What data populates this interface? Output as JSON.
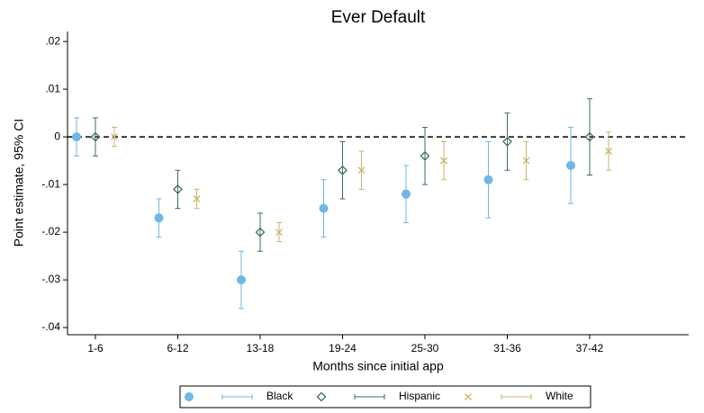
{
  "chart_data": {
    "type": "errorbar",
    "title": "Ever Default",
    "x_label": "Months since initial app",
    "y_label": "Point estimate, 95% CI",
    "categories": [
      "1-6",
      "6-12",
      "13-18",
      "19-24",
      "25-30",
      "31-36",
      "37-42"
    ],
    "series": [
      {
        "name": "Black",
        "color": "#6fb7e6",
        "marker": "circle",
        "values": [
          0,
          -0.017,
          -0.03,
          -0.015,
          -0.012,
          -0.009,
          -0.006
        ],
        "lower": [
          -0.004,
          -0.021,
          -0.036,
          -0.021,
          -0.018,
          -0.017,
          -0.014
        ],
        "upper": [
          0.004,
          -0.013,
          -0.024,
          -0.009,
          -0.006,
          -0.001,
          0.002
        ]
      },
      {
        "name": "Hispanic",
        "color": "#3f6e62",
        "marker": "diamond",
        "values": [
          0,
          -0.011,
          -0.02,
          -0.007,
          -0.004,
          -0.001,
          0
        ],
        "lower": [
          -0.004,
          -0.015,
          -0.024,
          -0.013,
          -0.01,
          -0.007,
          -0.008
        ],
        "upper": [
          0.004,
          -0.007,
          -0.016,
          -0.001,
          0.002,
          0.005,
          0.008
        ]
      },
      {
        "name": "White",
        "color": "#c9b56b",
        "marker": "x",
        "values": [
          0,
          -0.013,
          -0.02,
          -0.007,
          -0.005,
          -0.005,
          -0.003
        ],
        "lower": [
          -0.002,
          -0.015,
          -0.022,
          -0.011,
          -0.009,
          -0.009,
          -0.007
        ],
        "upper": [
          0.002,
          -0.011,
          -0.018,
          -0.003,
          -0.001,
          -0.001,
          0.001
        ]
      }
    ],
    "ylim": [
      -0.0415,
      0.0221
    ],
    "yticks": [
      {
        "value": -0.04,
        "label": "-.04"
      },
      {
        "value": -0.03,
        "label": "-.03"
      },
      {
        "value": -0.02,
        "label": "-.02"
      },
      {
        "value": -0.01,
        "label": "-.01"
      },
      0,
      {
        "value": 0.01,
        "label": ".01"
      },
      {
        "value": 0.02,
        "label": ".02"
      }
    ],
    "zero_line": true
  }
}
